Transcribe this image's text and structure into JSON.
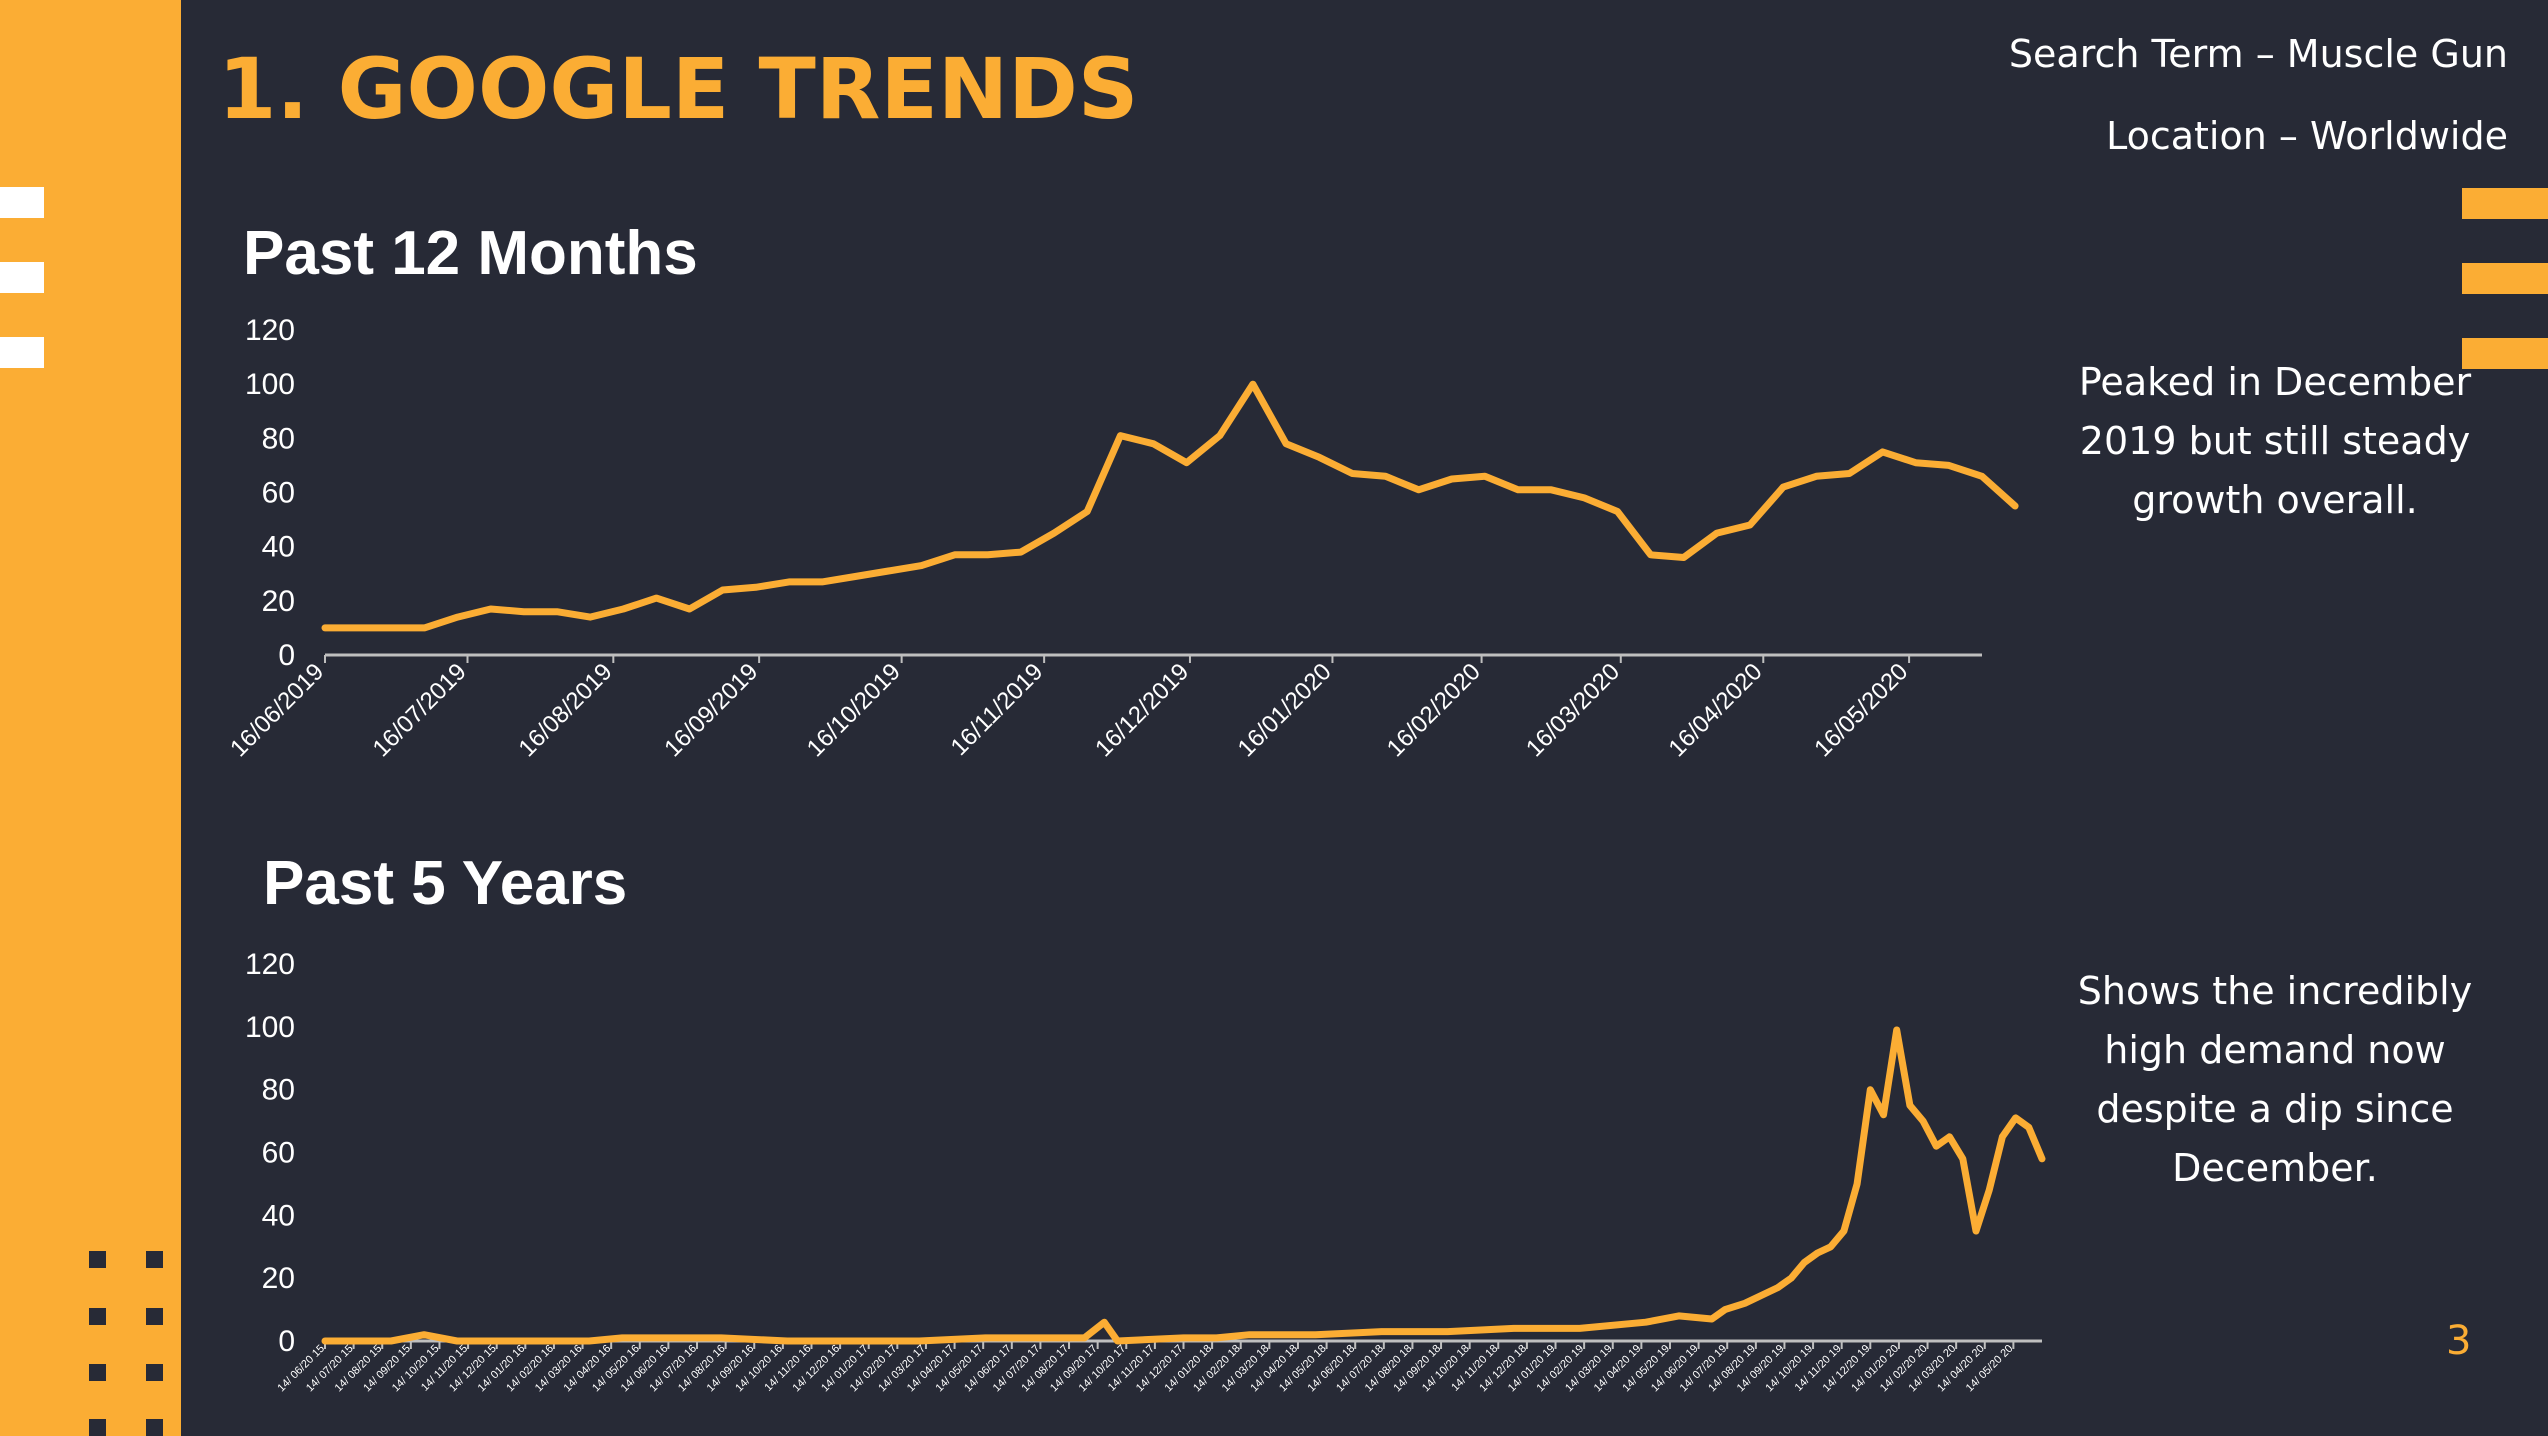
{
  "title": "1. GOOGLE TRENDS",
  "search_term": "Search Term – Muscle Gun",
  "location": "Location – Worldwide",
  "page_number": "3",
  "colors": {
    "accent": "#fbad34",
    "background": "#272a36",
    "text": "#ffffff"
  },
  "charts": [
    {
      "heading": "Past 12 Months",
      "note": "Peaked in December 2019 but still steady growth overall."
    },
    {
      "heading": "Past 5 Years",
      "note": "Shows the incredibly high demand now despite a dip since December."
    }
  ],
  "chart_data": [
    {
      "type": "line",
      "title": "Past 12 Months",
      "ylim": [
        0,
        120
      ],
      "yticks": [
        0,
        20,
        40,
        60,
        80,
        100,
        120
      ],
      "xlim": [
        0,
        50
      ],
      "x_tick_labels": [
        "16/06/2019",
        "16/07/2019",
        "16/08/2019",
        "16/09/2019",
        "16/10/2019",
        "16/11/2019",
        "16/12/2019",
        "16/01/2020",
        "16/02/2020",
        "16/03/2020",
        "16/04/2020",
        "16/05/2020"
      ],
      "x_tick_index": [
        0,
        4.3,
        8.7,
        13.1,
        17.4,
        21.7,
        26.1,
        30.4,
        34.9,
        39.1,
        43.4,
        47.8
      ],
      "grid": false,
      "series": [
        {
          "color": "#fbad34",
          "values": [
            10,
            10,
            10,
            10,
            14,
            17,
            16,
            16,
            14,
            17,
            21,
            17,
            24,
            25,
            27,
            27,
            29,
            31,
            33,
            37,
            37,
            38,
            45,
            53,
            81,
            78,
            71,
            81,
            100,
            78,
            73,
            67,
            66,
            61,
            65,
            66,
            61,
            61,
            58,
            53,
            37,
            36,
            45,
            48,
            62,
            66,
            67,
            75,
            71,
            70,
            66,
            55
          ]
        }
      ]
    },
    {
      "type": "line",
      "title": "Past 5 Years",
      "ylim": [
        0,
        120
      ],
      "yticks": [
        0,
        20,
        40,
        60,
        80,
        100,
        120
      ],
      "xlim": [
        0,
        260
      ],
      "x_tick_labels": [
        "14/ 06/20 15",
        "14/ 07/20 15",
        "14/ 08/20 15",
        "14/ 09/20 15",
        "14/ 10/20 15",
        "14/ 11/20 15",
        "14/ 12/20 15",
        "14/ 01/20 16",
        "14/ 02/20 16",
        "14/ 03/20 16",
        "14/ 04/20 16",
        "14/ 05/20 16",
        "14/ 06/20 16",
        "14/ 07/20 16",
        "14/ 08/20 16",
        "14/ 09/20 16",
        "14/ 10/20 16",
        "14/ 11/20 16",
        "14/ 12/20 16",
        "14/ 01/20 17",
        "14/ 02/20 17",
        "14/ 03/20 17",
        "14/ 04/20 17",
        "14/ 05/20 17",
        "14/ 06/20 17",
        "14/ 07/20 17",
        "14/ 08/20 17",
        "14/ 09/20 17",
        "14/ 10/20 17",
        "14/ 11/20 17",
        "14/ 12/20 17",
        "14/ 01/20 18",
        "14/ 02/20 18",
        "14/ 03/20 18",
        "14/ 04/20 18",
        "14/ 05/20 18",
        "14/ 06/20 18",
        "14/ 07/20 18",
        "14/ 08/20 18",
        "14/ 09/20 18",
        "14/ 10/20 18",
        "14/ 11/20 18",
        "14/ 12/20 18",
        "14/ 01/20 19",
        "14/ 02/20 19",
        "14/ 03/20 19",
        "14/ 04/20 19",
        "14/ 05/20 19",
        "14/ 06/20 19",
        "14/ 07/20 19",
        "14/ 08/20 19",
        "14/ 09/20 19",
        "14/ 10/20 19",
        "14/ 11/20 19",
        "14/ 12/20 19",
        "14/ 01/20 20",
        "14/ 02/20 20",
        "14/ 03/20 20",
        "14/ 04/20 20",
        "14/ 05/20 20"
      ],
      "grid": false,
      "series": [
        {
          "color": "#fbad34",
          "x": [
            0,
            10,
            15,
            20,
            40,
            45,
            60,
            70,
            75,
            80,
            90,
            100,
            110,
            115,
            118,
            120,
            130,
            135,
            140,
            150,
            160,
            170,
            180,
            190,
            200,
            205,
            210,
            212,
            215,
            218,
            220,
            222,
            224,
            226,
            228,
            230,
            232,
            234,
            236,
            238,
            240,
            242,
            244,
            246,
            248,
            250,
            252,
            254,
            256,
            258,
            260
          ],
          "values": [
            0,
            0,
            2,
            0,
            0,
            1,
            1,
            0,
            0,
            0,
            0,
            1,
            1,
            1,
            6,
            0,
            1,
            1,
            2,
            2,
            3,
            3,
            4,
            4,
            6,
            8,
            7,
            10,
            12,
            15,
            17,
            20,
            25,
            28,
            30,
            35,
            50,
            80,
            72,
            99,
            75,
            70,
            62,
            65,
            58,
            35,
            48,
            65,
            71,
            68,
            58
          ]
        }
      ]
    }
  ]
}
